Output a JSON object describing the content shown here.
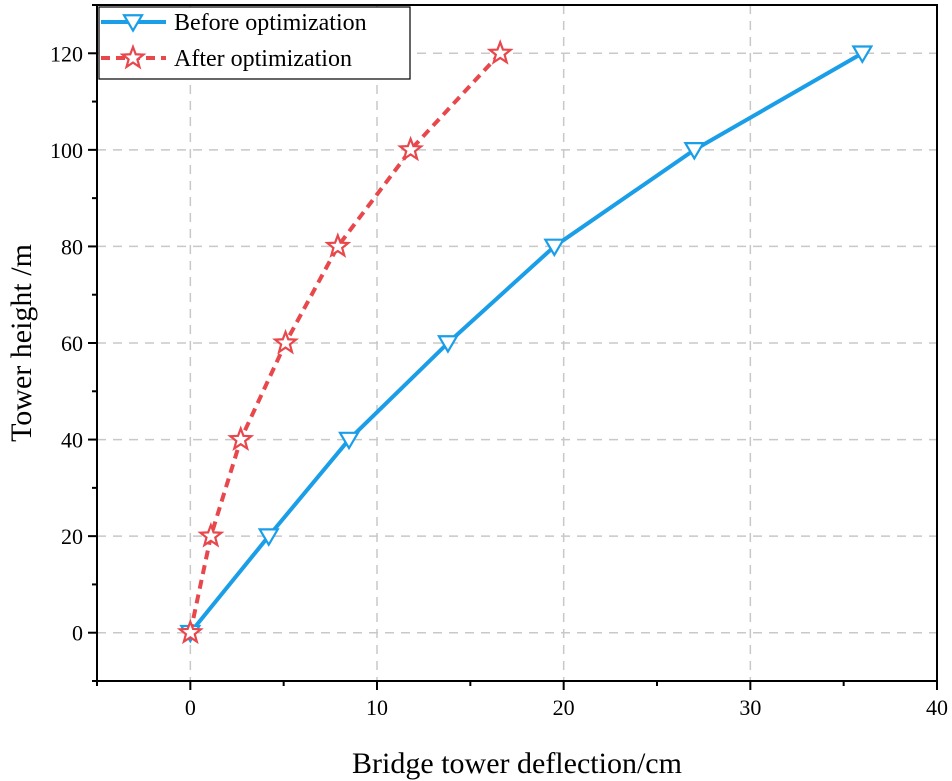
{
  "chart_data": {
    "type": "line",
    "title": "",
    "xlabel": "Bridge tower deflection/cm",
    "ylabel": "Tower height /m",
    "xlim": [
      -5,
      40
    ],
    "ylim": [
      -10,
      130
    ],
    "xticks": [
      0,
      10,
      20,
      30,
      40
    ],
    "yticks": [
      0,
      20,
      40,
      60,
      80,
      100,
      120
    ],
    "grid": true,
    "legend_position": "top-left",
    "series": [
      {
        "name": "Before optimization",
        "color": "#1a9ee8",
        "line_style": "solid",
        "marker": "triangle-down",
        "x": [
          0,
          4.2,
          8.5,
          13.8,
          19.5,
          27.0,
          36.0
        ],
        "y": [
          0,
          20,
          40,
          60,
          80,
          100,
          120
        ]
      },
      {
        "name": "After optimization",
        "color": "#e8474c",
        "line_style": "dashed",
        "marker": "star",
        "x": [
          0,
          1.1,
          2.7,
          5.1,
          7.9,
          11.8,
          16.6
        ],
        "y": [
          0,
          20,
          40,
          60,
          80,
          100,
          120
        ]
      }
    ]
  }
}
